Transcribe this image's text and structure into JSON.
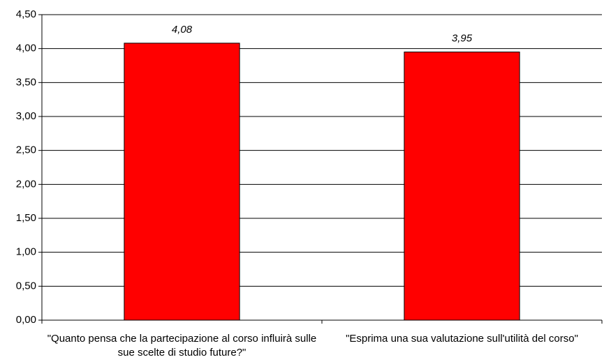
{
  "chart_data": {
    "type": "bar",
    "categories": [
      "\"Quanto pensa che la partecipazione al corso influirà sulle sue scelte di studio future?\"",
      "\"Esprima una sua valutazione sull'utilità del corso\""
    ],
    "values": [
      4.08,
      3.95
    ],
    "value_labels": [
      "4,08",
      "3,95"
    ],
    "color": "#ff0000",
    "ylim": [
      0,
      4.5
    ],
    "yticks": [
      {
        "value": 0,
        "label": "0,00"
      },
      {
        "value": 0.5,
        "label": "0,50"
      },
      {
        "value": 1,
        "label": "1,00"
      },
      {
        "value": 1.5,
        "label": "1,50"
      },
      {
        "value": 2,
        "label": "2,00"
      },
      {
        "value": 2.5,
        "label": "2,50"
      },
      {
        "value": 3,
        "label": "3,00"
      },
      {
        "value": 3.5,
        "label": "3,50"
      },
      {
        "value": 4,
        "label": "4,00"
      },
      {
        "value": 4.5,
        "label": "4,50"
      }
    ],
    "grid": true
  }
}
